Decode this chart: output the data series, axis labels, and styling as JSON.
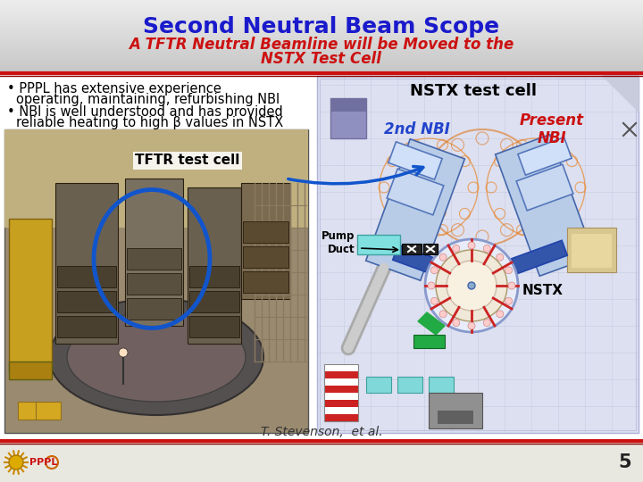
{
  "title": "Second Neutral Beam Scope",
  "subtitle_line1": "A TFTR Neutral Beamline will be Moved to the",
  "subtitle_line2": "NSTX Test Cell",
  "title_color": "#1a1acc",
  "subtitle_color": "#cc1111",
  "bullet1_line1": "PPPL has extensive experience",
  "bullet1_line2": "operating, maintaining, refurbishing NBI",
  "bullet2_line1": "NBI is well understood and has provided",
  "bullet2_line2": "reliable heating to high β values in NSTX",
  "left_label": "TFTR test cell",
  "right_label_top": "NSTX test cell",
  "right_label_2nd": "2nd NBI",
  "right_label_present": "Present\nNBI",
  "right_label_nstx": "NSTX",
  "right_label_pump": "Pump\nDuct",
  "footer_text": "T. Stevenson,  et al.",
  "page_number": "5",
  "header_bg": "#d0d0d0",
  "footer_bar_color": "#cc1111",
  "slide_bg": "#ffffff",
  "diagram_bg": "#dde0f0",
  "diagram_border": "#c0c4e0"
}
